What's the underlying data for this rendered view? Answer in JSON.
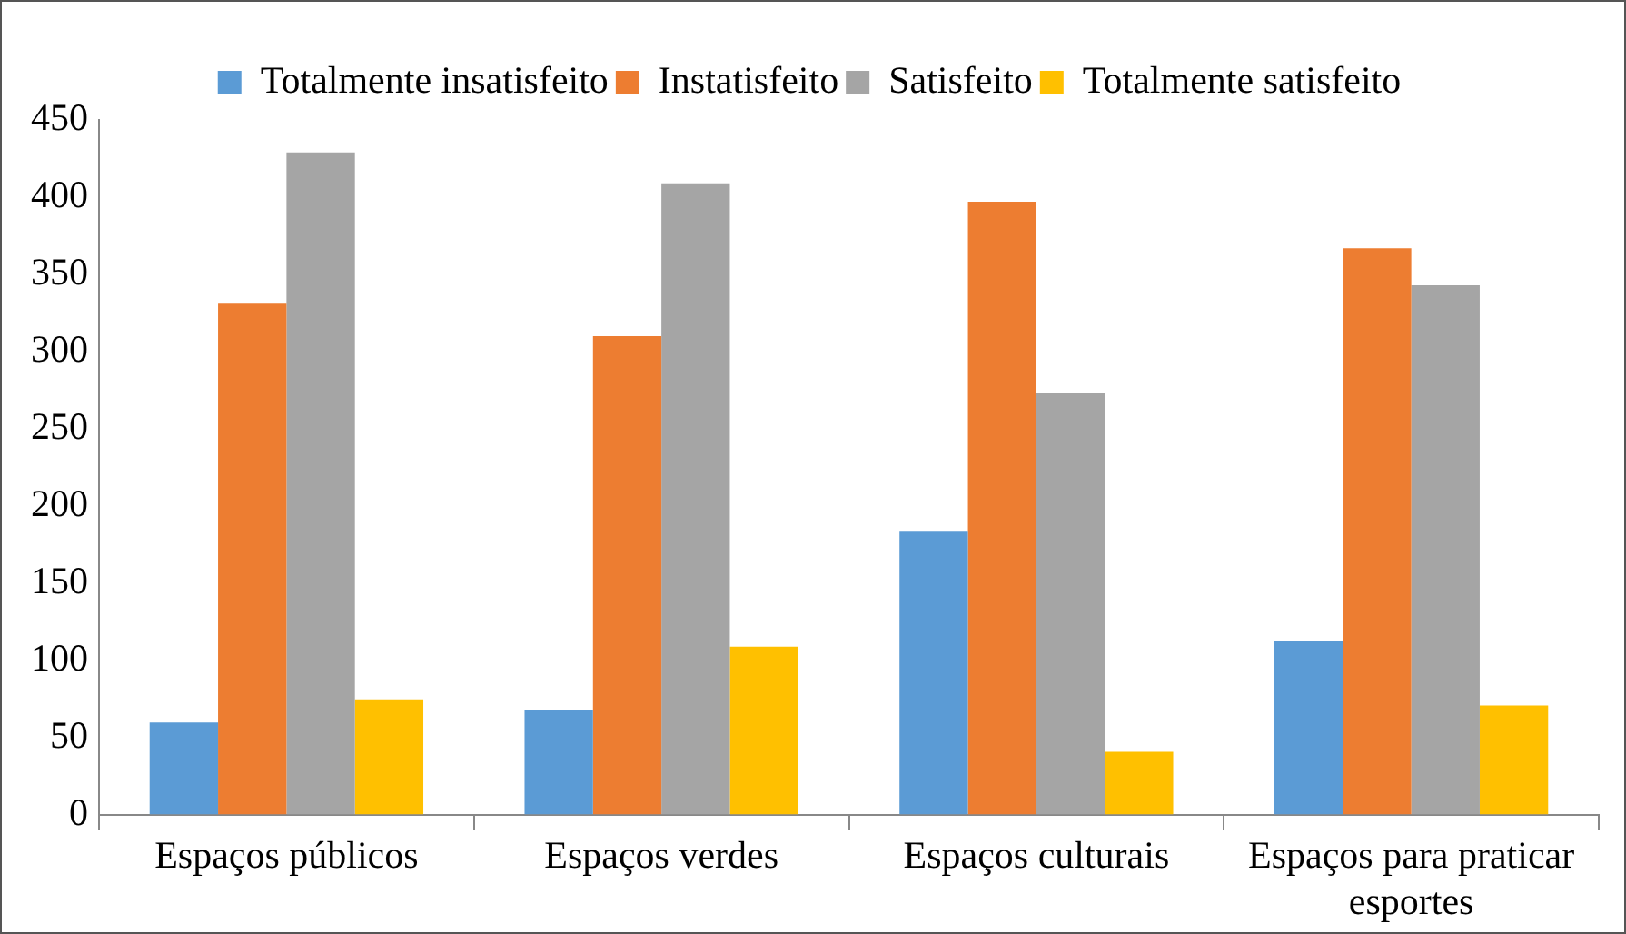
{
  "chart_data": {
    "type": "bar",
    "categories": [
      "Espaços públicos",
      "Espaços verdes",
      "Espaços culturais",
      "Espaços para praticar esportes"
    ],
    "series": [
      {
        "name": "Totalmente insatisfeito",
        "color": "#5b9bd5",
        "values": [
          60,
          68,
          184,
          113
        ]
      },
      {
        "name": "Instatisfeito",
        "color": "#ed7d31",
        "values": [
          331,
          310,
          397,
          367
        ]
      },
      {
        "name": "Satisfeito",
        "color": "#a5a5a5",
        "values": [
          429,
          409,
          273,
          343
        ]
      },
      {
        "name": "Totalmente satisfeito",
        "color": "#ffc000",
        "values": [
          75,
          109,
          41,
          71
        ]
      }
    ],
    "ylim": [
      0,
      450
    ],
    "yticks": [
      0,
      50,
      100,
      150,
      200,
      250,
      300,
      350,
      400,
      450
    ],
    "grid": false,
    "legend": "top"
  }
}
